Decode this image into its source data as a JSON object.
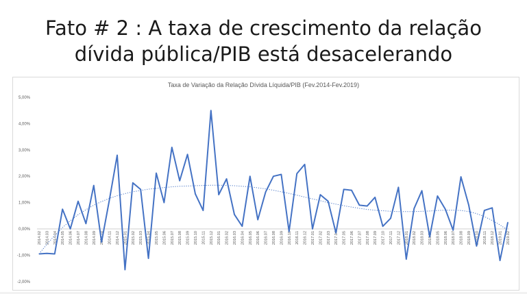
{
  "slide": {
    "title_line1": "Fato # 2 : A taxa de crescimento da relação",
    "title_line2": "dívida pública/PIB está desacelerando"
  },
  "colors": {
    "series": "#4472c4",
    "trend": "#4472c4",
    "axis": "#bfbfbf",
    "text": "#595959"
  },
  "chart_data": {
    "type": "line",
    "title": "Taxa de Variação da Relação Dívida Líquida/PIB (Fev.2014-Fev.2019)",
    "xlabel": "",
    "ylabel": "",
    "ylim": [
      -2,
      5
    ],
    "yticks": [
      "-2,00%",
      "-1,00%",
      "0,00%",
      "1,00%",
      "2,00%",
      "3,00%",
      "4,00%",
      "5,00%"
    ],
    "ytick_values": [
      -2,
      -1,
      0,
      1,
      2,
      3,
      4,
      5
    ],
    "grid": false,
    "legend": "none",
    "x": [
      "2014.02",
      "2014.03",
      "2014.04",
      "2014.05",
      "2014.06",
      "2014.07",
      "2014.08",
      "2014.09",
      "2014.10",
      "2014.11",
      "2014.12",
      "2015.01",
      "2015.02",
      "2015.03",
      "2015.04",
      "2015.05",
      "2015.06",
      "2015.07",
      "2015.08",
      "2015.09",
      "2015.10",
      "2015.11",
      "2015.12",
      "2016.01",
      "2016.02",
      "2016.03",
      "2016.04",
      "2016.05",
      "2016.06",
      "2016.07",
      "2016.08",
      "2016.09",
      "2016.10",
      "2016.11",
      "2016.12",
      "2017.01",
      "2017.02",
      "2017.03",
      "2017.04",
      "2017.05",
      "2017.06",
      "2017.07",
      "2017.08",
      "2017.09",
      "2017.10",
      "2017.11",
      "2017.12",
      "2018.01",
      "2018.02",
      "2018.03",
      "2018.04",
      "2018.05",
      "2018.06",
      "2018.07",
      "2018.08",
      "2018.09",
      "2018.10",
      "2018.11",
      "2018.12",
      "2019.01",
      "2019.02"
    ],
    "series": [
      {
        "style": "solid",
        "values": [
          -0.95,
          -0.93,
          -0.95,
          0.75,
          0.0,
          1.05,
          0.2,
          1.65,
          -0.5,
          1.1,
          2.8,
          -1.55,
          1.75,
          1.5,
          -1.12,
          2.12,
          1.0,
          3.1,
          1.83,
          2.83,
          1.33,
          0.7,
          4.5,
          1.3,
          1.9,
          0.55,
          0.1,
          2.0,
          0.35,
          1.4,
          2.0,
          2.07,
          -0.1,
          2.1,
          2.45,
          0.0,
          1.3,
          1.05,
          -0.15,
          1.5,
          1.47,
          0.9,
          0.87,
          1.2,
          0.1,
          0.4,
          1.58,
          -1.15,
          0.77,
          1.45,
          -0.3,
          1.25,
          0.75,
          -0.05,
          1.98,
          0.9,
          -0.65,
          0.7,
          0.8,
          -1.2,
          0.25
        ]
      },
      {
        "style": "dotted-trend",
        "values": [
          -0.95,
          -0.58,
          -0.25,
          0.05,
          0.31,
          0.54,
          0.73,
          0.9,
          1.04,
          1.16,
          1.26,
          1.34,
          1.41,
          1.46,
          1.51,
          1.54,
          1.57,
          1.6,
          1.62,
          1.63,
          1.64,
          1.65,
          1.66,
          1.66,
          1.65,
          1.64,
          1.62,
          1.6,
          1.56,
          1.52,
          1.47,
          1.41,
          1.35,
          1.28,
          1.21,
          1.14,
          1.07,
          1.0,
          0.94,
          0.88,
          0.83,
          0.78,
          0.74,
          0.71,
          0.69,
          0.67,
          0.66,
          0.66,
          0.66,
          0.67,
          0.68,
          0.7,
          0.71,
          0.71,
          0.7,
          0.66,
          0.58,
          0.47,
          0.32,
          0.15,
          -0.05
        ]
      }
    ]
  }
}
